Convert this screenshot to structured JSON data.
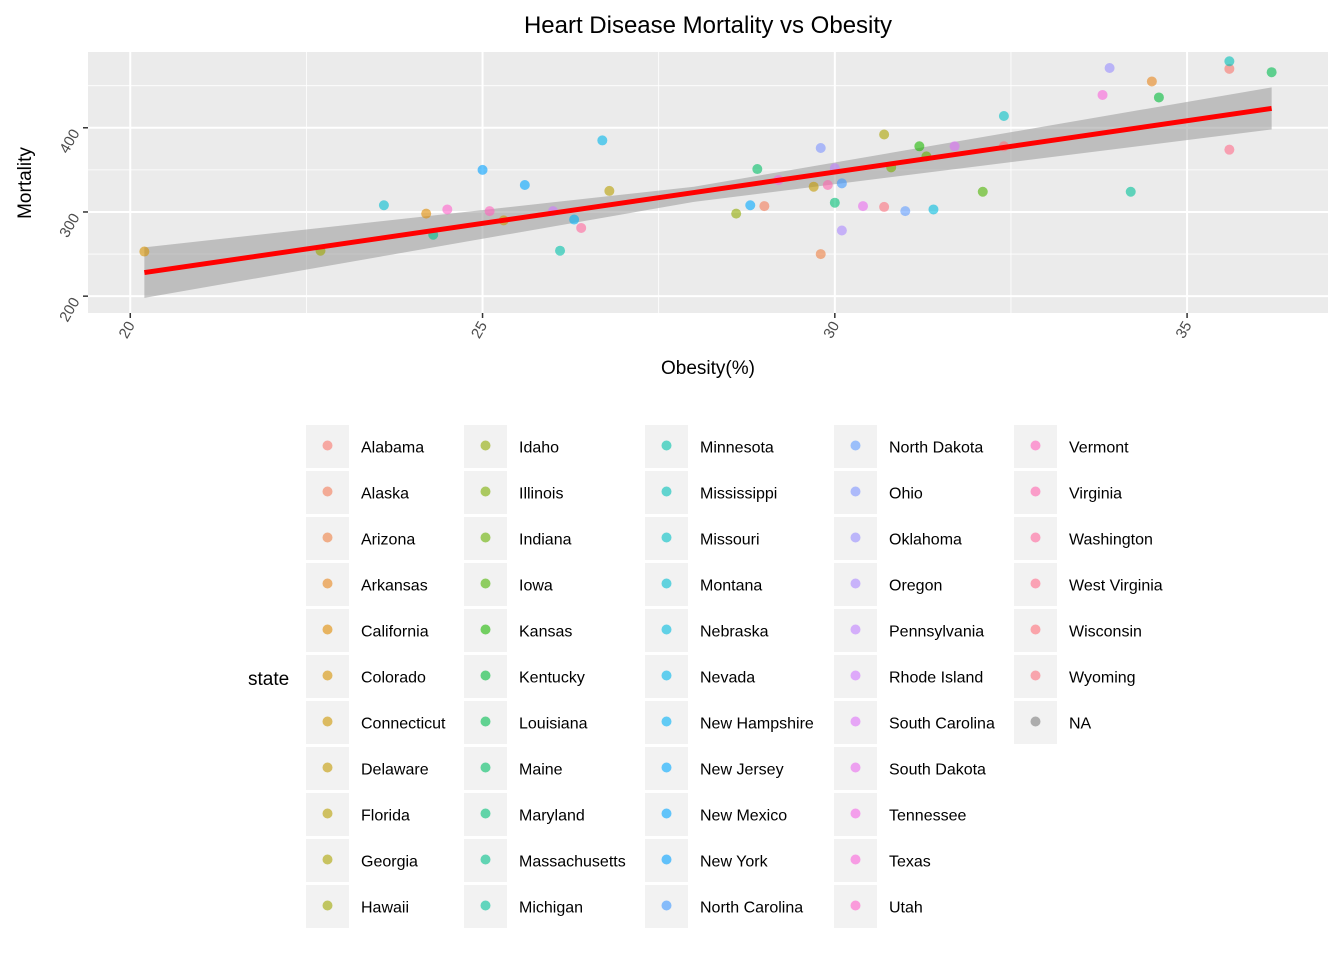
{
  "chart_data": {
    "type": "scatter",
    "title": "Heart Disease Mortality vs Obesity",
    "xlabel": "Obesity(%)",
    "ylabel": "Mortality",
    "xlim": [
      19.4,
      37.0
    ],
    "ylim": [
      180,
      490
    ],
    "xticks": [
      20,
      25,
      30,
      35
    ],
    "yticks": [
      200,
      300,
      400
    ],
    "grid": true,
    "legend_title": "state",
    "legend_position": "right-bottom",
    "regression": {
      "method": "lm",
      "color": "#FF0000",
      "x_range": [
        20.2,
        36.2
      ],
      "y_range": [
        228,
        423
      ],
      "ci_band": [
        [
          20.2,
          198,
          258
        ],
        [
          28,
          312,
          330
        ],
        [
          36.2,
          398,
          448
        ]
      ]
    },
    "points": [
      {
        "state": "Alabama",
        "x": 35.6,
        "y": 470
      },
      {
        "state": "Alaska",
        "x": 29.0,
        "y": 307
      },
      {
        "state": "Arizona",
        "x": 29.8,
        "y": 250
      },
      {
        "state": "Arkansas",
        "x": 34.5,
        "y": 455
      },
      {
        "state": "California",
        "x": 24.2,
        "y": 298
      },
      {
        "state": "Colorado",
        "x": 20.2,
        "y": 253
      },
      {
        "state": "Connecticut",
        "x": 25.3,
        "y": 290
      },
      {
        "state": "Delaware",
        "x": 29.7,
        "y": 330
      },
      {
        "state": "Florida",
        "x": 26.8,
        "y": 325
      },
      {
        "state": "Georgia",
        "x": 30.7,
        "y": 392
      },
      {
        "state": "Hawaii",
        "x": 22.7,
        "y": 254
      },
      {
        "state": "Idaho",
        "x": 28.6,
        "y": 298
      },
      {
        "state": "Illinois",
        "x": 30.8,
        "y": 353
      },
      {
        "state": "Indiana",
        "x": 31.3,
        "y": 366
      },
      {
        "state": "Iowa",
        "x": 32.1,
        "y": 324
      },
      {
        "state": "Kansas",
        "x": 31.2,
        "y": 378
      },
      {
        "state": "Kentucky",
        "x": 34.6,
        "y": 436
      },
      {
        "state": "Louisiana",
        "x": 36.2,
        "y": 466
      },
      {
        "state": "Maine",
        "x": 28.9,
        "y": 351
      },
      {
        "state": "Maryland",
        "x": 30.0,
        "y": 311
      },
      {
        "state": "Massachusetts",
        "x": 24.3,
        "y": 273
      },
      {
        "state": "Michigan",
        "x": 34.2,
        "y": 324
      },
      {
        "state": "Minnesota",
        "x": 26.1,
        "y": 254
      },
      {
        "state": "Mississippi",
        "x": 35.6,
        "y": 479
      },
      {
        "state": "Missouri",
        "x": 32.4,
        "y": 414
      },
      {
        "state": "Montana",
        "x": 23.6,
        "y": 308
      },
      {
        "state": "Nebraska",
        "x": 31.4,
        "y": 303
      },
      {
        "state": "Nevada",
        "x": 26.7,
        "y": 385
      },
      {
        "state": "New Hampshire",
        "x": 26.3,
        "y": 291
      },
      {
        "state": "New Jersey",
        "x": 28.8,
        "y": 308
      },
      {
        "state": "New Mexico",
        "x": 25.6,
        "y": 332
      },
      {
        "state": "New York",
        "x": 25.0,
        "y": 350
      },
      {
        "state": "North Carolina",
        "x": 30.1,
        "y": 334
      },
      {
        "state": "North Dakota",
        "x": 31.0,
        "y": 301
      },
      {
        "state": "Ohio",
        "x": 29.8,
        "y": 376
      },
      {
        "state": "Oklahoma",
        "x": 33.9,
        "y": 471
      },
      {
        "state": "Oregon",
        "x": 30.1,
        "y": 278
      },
      {
        "state": "Pennsylvania",
        "x": 30.0,
        "y": 352
      },
      {
        "state": "Rhode Island",
        "x": 26.0,
        "y": 301
      },
      {
        "state": "South Carolina",
        "x": 31.7,
        "y": 378
      },
      {
        "state": "South Dakota",
        "x": 30.4,
        "y": 307
      },
      {
        "state": "Tennessee",
        "x": 29.2,
        "y": 338
      },
      {
        "state": "Texas",
        "x": 33.8,
        "y": 439
      },
      {
        "state": "Utah",
        "x": 24.5,
        "y": 303
      },
      {
        "state": "Vermont",
        "x": 25.1,
        "y": 301
      },
      {
        "state": "Virginia",
        "x": 29.9,
        "y": 332
      },
      {
        "state": "Washington",
        "x": 26.4,
        "y": 281
      },
      {
        "state": "West Virginia",
        "x": 35.6,
        "y": 374
      },
      {
        "state": "Wisconsin",
        "x": 32.4,
        "y": 378
      },
      {
        "state": "Wyoming",
        "x": 30.7,
        "y": 306
      }
    ],
    "legend": [
      {
        "label": "Alabama",
        "color": "#F8766D"
      },
      {
        "label": "Alaska",
        "color": "#F47B58"
      },
      {
        "label": "Arizona",
        "color": "#EE8043"
      },
      {
        "label": "Arkansas",
        "color": "#E7861B"
      },
      {
        "label": "California",
        "color": "#DF8B00"
      },
      {
        "label": "Colorado",
        "color": "#D69100"
      },
      {
        "label": "Connecticut",
        "color": "#CD9600"
      },
      {
        "label": "Delaware",
        "color": "#C39A00"
      },
      {
        "label": "Florida",
        "color": "#B79F00"
      },
      {
        "label": "Georgia",
        "color": "#ABA300"
      },
      {
        "label": "Hawaii",
        "color": "#9EA700"
      },
      {
        "label": "Idaho",
        "color": "#8FAA00"
      },
      {
        "label": "Illinois",
        "color": "#7CAE00"
      },
      {
        "label": "Indiana",
        "color": "#68B100"
      },
      {
        "label": "Iowa",
        "color": "#4CB400"
      },
      {
        "label": "Kansas",
        "color": "#1CB700"
      },
      {
        "label": "Kentucky",
        "color": "#00BA38"
      },
      {
        "label": "Louisiana",
        "color": "#00BC50"
      },
      {
        "label": "Maine",
        "color": "#00BE65"
      },
      {
        "label": "Maryland",
        "color": "#00BF77"
      },
      {
        "label": "Massachusetts",
        "color": "#00C089"
      },
      {
        "label": "Michigan",
        "color": "#00C19A"
      },
      {
        "label": "Minnesota",
        "color": "#00C1AA"
      },
      {
        "label": "Mississippi",
        "color": "#00C0B8"
      },
      {
        "label": "Missouri",
        "color": "#00BFC4"
      },
      {
        "label": "Montana",
        "color": "#00BDD0"
      },
      {
        "label": "Nebraska",
        "color": "#00BADE"
      },
      {
        "label": "Nevada",
        "color": "#00B6EB"
      },
      {
        "label": "New Hampshire",
        "color": "#00B0F6"
      },
      {
        "label": "New Jersey",
        "color": "#00A9FF"
      },
      {
        "label": "New Mexico",
        "color": "#00A5FF"
      },
      {
        "label": "New York",
        "color": "#00A0FF"
      },
      {
        "label": "North Carolina",
        "color": "#3E98FF"
      },
      {
        "label": "North Dakota",
        "color": "#619CFF"
      },
      {
        "label": "Ohio",
        "color": "#7F95FF"
      },
      {
        "label": "Oklahoma",
        "color": "#978DFF"
      },
      {
        "label": "Oregon",
        "color": "#AC88FF"
      },
      {
        "label": "Pennsylvania",
        "color": "#BF80FF"
      },
      {
        "label": "Rhode Island",
        "color": "#D078FF"
      },
      {
        "label": "South Carolina",
        "color": "#DE71F9"
      },
      {
        "label": "South Dakota",
        "color": "#E96BEF"
      },
      {
        "label": "Tennessee",
        "color": "#F365E6"
      },
      {
        "label": "Texas",
        "color": "#FA62DB"
      },
      {
        "label": "Utah",
        "color": "#FF61CC"
      },
      {
        "label": "Vermont",
        "color": "#FF62BC"
      },
      {
        "label": "Virginia",
        "color": "#FF64AD"
      },
      {
        "label": "Washington",
        "color": "#FF679C"
      },
      {
        "label": "West Virginia",
        "color": "#FF6C8A"
      },
      {
        "label": "Wisconsin",
        "color": "#FF6F7A"
      },
      {
        "label": "Wyoming",
        "color": "#FC717F"
      },
      {
        "label": "NA",
        "color": "#7F7F7F"
      }
    ]
  }
}
